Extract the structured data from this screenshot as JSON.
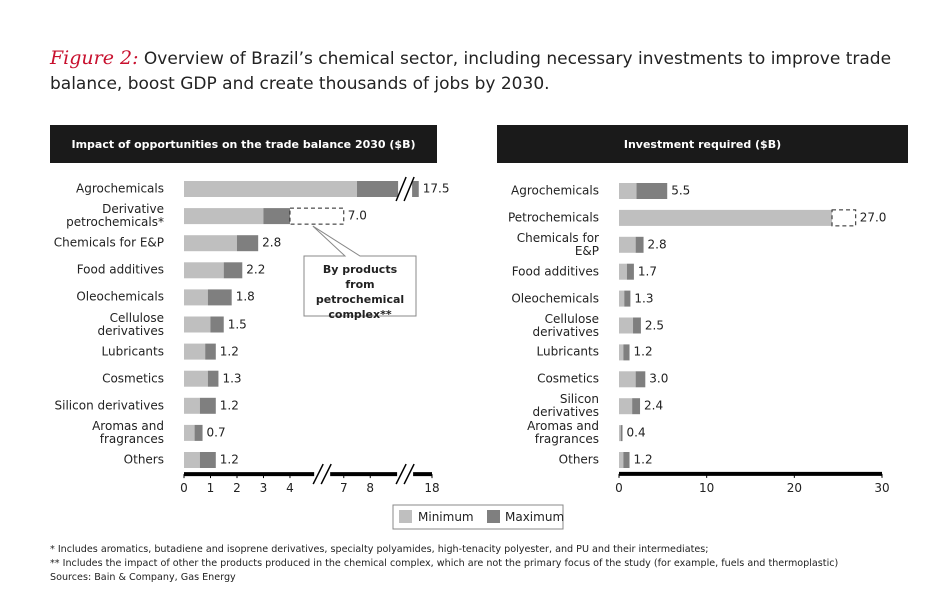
{
  "figure_label": "Figure 2:",
  "title": "Overview of Brazil’s chemical sector, including necessary investments to improve trade balance, boost GDP and create thousands of jobs by 2030.",
  "legend": [
    "Minimum",
    "Maximum"
  ],
  "footnotes": [
    "* Includes aromatics, butadiene and isoprene derivatives, specialty polyamides, high-tenacity polyester, and PU and their intermediates;",
    "** Includes the impact of other the products produced in the chemical complex, which are not the primary focus of the study (for example, fuels and thermoplastic)",
    "Sources: Bain & Company, Gas Energy"
  ],
  "chart_data": [
    {
      "type": "bar",
      "orientation": "horizontal",
      "title": "Impact of opportunities on the trade balance 2030 ($B)",
      "categories": [
        "Agrochemicals",
        "Derivative petrochemicals*",
        "Chemicals for E&P",
        "Food additives",
        "Oleochemicals",
        "Cellulose derivatives",
        "Lubricants",
        "Cosmetics",
        "Silicon derivatives",
        "Aromas and fragrances",
        "Others"
      ],
      "series": [
        {
          "name": "Minimum",
          "color": "#bfbfbf",
          "values": [
            7.5,
            3.0,
            2.0,
            1.5,
            0.9,
            1.0,
            0.8,
            0.9,
            0.6,
            0.4,
            0.6
          ]
        },
        {
          "name": "Maximum",
          "color": "#7f7f7f",
          "values": [
            17.5,
            4.0,
            2.8,
            2.2,
            1.8,
            1.5,
            1.2,
            1.3,
            1.2,
            0.7,
            1.2
          ],
          "value_labels": [
            "17.5",
            null,
            "2.8",
            "2.2",
            "1.8",
            "1.5",
            "1.2",
            "1.3",
            "1.2",
            "0.7",
            "1.2"
          ]
        }
      ],
      "dashed": {
        "category": "Derivative petrochemicals*",
        "value": 7.0,
        "label": "7.0",
        "note": "By products from petrochemical complex**"
      },
      "xlim": [
        0,
        18
      ],
      "x_breaks": [
        [
          4.8,
          6.6
        ],
        [
          8.9,
          17.4
        ]
      ],
      "xticks": [
        0,
        1,
        2,
        3,
        4,
        7,
        8,
        18
      ]
    },
    {
      "type": "bar",
      "orientation": "horizontal",
      "title": "Investment required ($B)",
      "categories": [
        "Agrochemicals",
        "Petrochemicals",
        "Chemicals for E&P",
        "Food additives",
        "Oleochemicals",
        "Cellulose derivatives",
        "Lubricants",
        "Cosmetics",
        "Silicon derivatives",
        "Aromas and fragrances",
        "Others"
      ],
      "series": [
        {
          "name": "Minimum",
          "color": "#bfbfbf",
          "values": [
            2.0,
            24.3,
            1.9,
            0.9,
            0.6,
            1.6,
            0.5,
            1.9,
            1.5,
            0.2,
            0.5
          ]
        },
        {
          "name": "Maximum",
          "color": "#7f7f7f",
          "values": [
            5.5,
            null,
            2.8,
            1.7,
            1.3,
            2.5,
            1.2,
            3.0,
            2.4,
            0.4,
            1.2
          ],
          "value_labels": [
            "5.5",
            null,
            "2.8",
            "1.7",
            "1.3",
            "2.5",
            "1.2",
            "3.0",
            "2.4",
            "0.4",
            "1.2"
          ]
        }
      ],
      "dashed": {
        "category": "Petrochemicals",
        "value": 27.0,
        "label": "27.0"
      },
      "xlim": [
        0,
        30
      ],
      "x_breaks": [],
      "xticks": [
        0,
        10,
        20,
        30
      ]
    }
  ]
}
